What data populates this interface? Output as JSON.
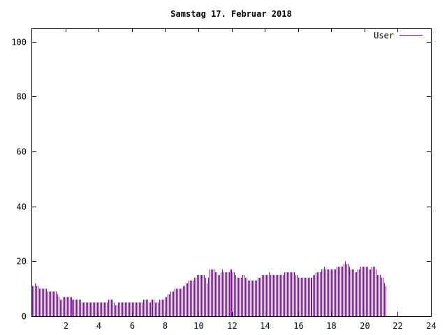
{
  "chart_data": {
    "type": "bar",
    "title": "Samstag 17. Februar 2018",
    "xlabel": "",
    "ylabel": "",
    "xlim": [
      0,
      24
    ],
    "ylim": [
      0,
      105
    ],
    "x_ticks": [
      2,
      4,
      6,
      8,
      10,
      12,
      14,
      16,
      18,
      20,
      22,
      24
    ],
    "y_ticks": [
      0,
      20,
      40,
      60,
      80,
      100
    ],
    "grid": false,
    "legend": "top-right",
    "colors": {
      "series": "#9400d3",
      "axis": "#000000",
      "background": "#ffffff"
    },
    "series": [
      {
        "name": "User",
        "x_start": 0.0,
        "x_step": 0.0833333,
        "values": [
          11,
          11,
          12,
          11,
          11,
          10,
          10,
          10,
          10,
          10,
          10,
          9,
          9,
          9,
          9,
          9,
          9,
          9,
          8,
          7,
          6,
          6,
          7,
          7,
          7,
          7,
          7,
          7,
          7,
          6,
          6,
          6,
          6,
          6,
          6,
          6,
          5,
          5,
          5,
          5,
          5,
          5,
          5,
          5,
          5,
          5,
          5,
          5,
          5,
          5,
          5,
          5,
          5,
          5,
          5,
          6,
          6,
          6,
          6,
          5,
          4,
          4,
          5,
          5,
          5,
          5,
          5,
          5,
          5,
          5,
          5,
          5,
          5,
          5,
          5,
          5,
          5,
          5,
          5,
          5,
          6,
          6,
          6,
          6,
          5,
          5,
          6,
          6,
          6,
          5,
          5,
          5,
          6,
          6,
          6,
          6,
          7,
          7,
          8,
          8,
          9,
          9,
          9,
          10,
          10,
          10,
          10,
          10,
          10,
          11,
          11,
          12,
          12,
          13,
          13,
          13,
          13,
          14,
          14,
          15,
          15,
          15,
          15,
          15,
          15,
          14,
          12,
          14,
          17,
          17,
          17,
          17,
          16,
          16,
          15,
          15,
          16,
          17,
          16,
          16,
          16,
          16,
          16,
          17,
          17,
          16,
          16,
          15,
          14,
          14,
          14,
          14,
          15,
          15,
          14,
          14,
          13,
          13,
          13,
          13,
          13,
          13,
          13,
          14,
          14,
          14,
          15,
          15,
          15,
          15,
          15,
          16,
          15,
          15,
          15,
          15,
          15,
          15,
          15,
          15,
          15,
          15,
          16,
          16,
          16,
          16,
          16,
          16,
          16,
          16,
          15,
          15,
          14,
          14,
          14,
          14,
          14,
          14,
          14,
          14,
          14,
          14,
          14,
          15,
          15,
          16,
          16,
          16,
          16,
          17,
          17,
          18,
          17,
          17,
          17,
          17,
          17,
          17,
          17,
          17,
          18,
          18,
          18,
          18,
          18,
          19,
          20,
          19,
          19,
          18,
          17,
          17,
          17,
          16,
          16,
          17,
          17,
          18,
          18,
          18,
          18,
          18,
          18,
          17,
          17,
          18,
          18,
          18,
          17,
          15,
          15,
          15,
          14,
          14,
          12,
          11
        ]
      }
    ]
  }
}
